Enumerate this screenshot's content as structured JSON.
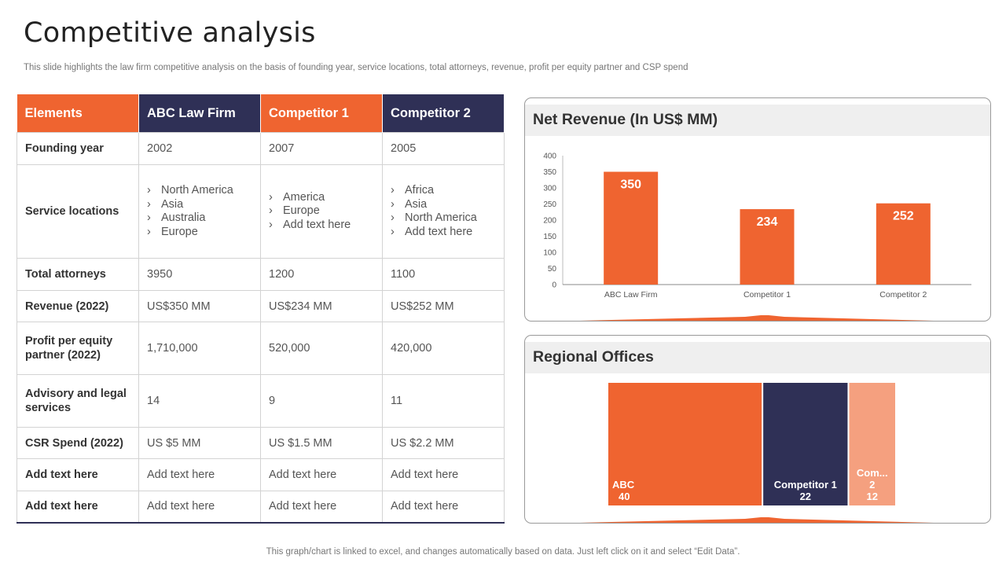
{
  "page": {
    "title": "Competitive analysis",
    "subtitle": "This slide highlights the law firm competitive analysis on the basis of founding year, service locations, total attorneys, revenue, profit per equity partner and CSP spend",
    "footer": "This graph/chart is linked to excel, and changes automatically based on data. Just left click on it and select “Edit Data”."
  },
  "table": {
    "headers": [
      "Elements",
      "ABC Law Firm",
      "Competitor 1",
      "Competitor 2"
    ],
    "rows": [
      {
        "label": "Founding year",
        "values": [
          "2002",
          "2007",
          "2005"
        ]
      },
      {
        "label": "Service locations",
        "locations": [
          [
            "North America",
            "Asia",
            "Australia",
            "Europe"
          ],
          [
            "America",
            "Europe",
            "Add text here"
          ],
          [
            "Africa",
            "Asia",
            "North America",
            "Add text here"
          ]
        ]
      },
      {
        "label": "Total attorneys",
        "values": [
          "3950",
          "1200",
          "1100"
        ]
      },
      {
        "label": "Revenue (2022)",
        "values": [
          "US$350 MM",
          "US$234 MM",
          "US$252 MM"
        ]
      },
      {
        "label": "Profit per equity partner (2022)",
        "values": [
          "1,710,000",
          "520,000",
          "420,000"
        ]
      },
      {
        "label": "Advisory and legal services",
        "values": [
          "14",
          "9",
          "11"
        ]
      },
      {
        "label": "CSR Spend (2022)",
        "values": [
          "US $5 MM",
          "US $1.5 MM",
          "US $2.2 MM"
        ]
      },
      {
        "label": "Add text here",
        "values": [
          "Add text here",
          "Add text here",
          "Add text here"
        ]
      },
      {
        "label": "Add text here",
        "values": [
          "Add text here",
          "Add text here",
          "Add text here"
        ]
      }
    ]
  },
  "colors": {
    "orange": "#ef6430",
    "navy": "#2f3056",
    "peach": "#f5a07f"
  },
  "chart_data": [
    {
      "type": "bar",
      "title": "Net Revenue (In US$ MM)",
      "categories": [
        "ABC Law Firm",
        "Competitor 1",
        "Competitor 2"
      ],
      "values": [
        350,
        234,
        252
      ],
      "ylim": [
        0,
        400
      ],
      "yticks": [
        0,
        50,
        100,
        150,
        200,
        250,
        300,
        350,
        400
      ],
      "xlabel": "",
      "ylabel": ""
    },
    {
      "type": "treemap",
      "title": "Regional Offices",
      "items": [
        {
          "label": "ABC",
          "value": 40
        },
        {
          "label": "Competitor 1",
          "value": 22
        },
        {
          "label": "Com...",
          "sublabel": "2",
          "value": 12
        }
      ]
    }
  ]
}
